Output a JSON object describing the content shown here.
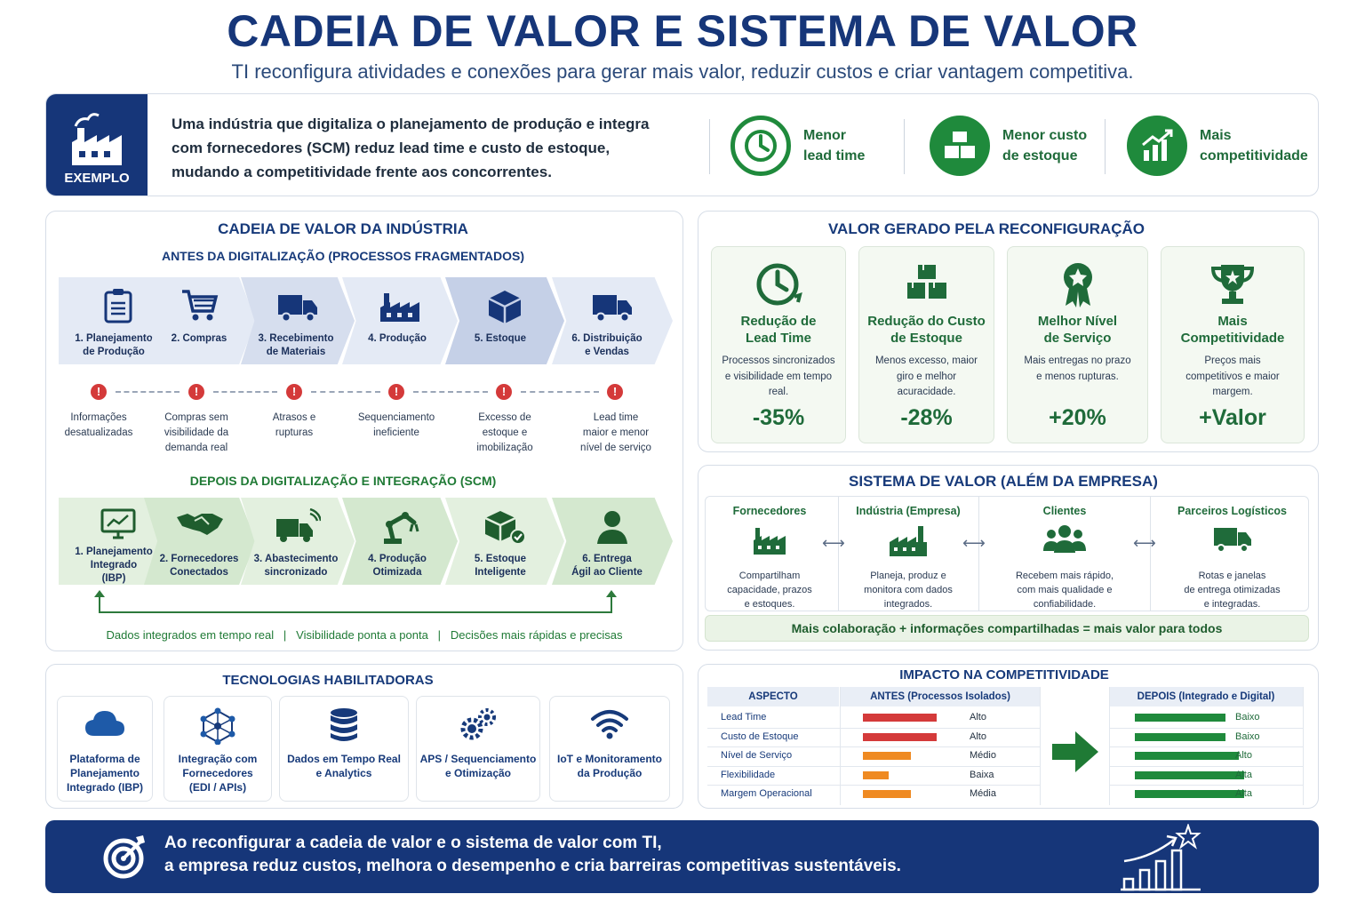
{
  "header": {
    "title": "CADEIA DE VALOR E SISTEMA DE VALOR",
    "subtitle": "TI reconfigura atividades e conexões para gerar mais valor, reduzir custos e criar vantagem competitiva."
  },
  "example": {
    "badge": "EXEMPLO",
    "text": "Uma indústria que digitaliza o planejamento de produção e integra com fornecedores (SCM) reduz lead time e custo de estoque, mudando a competitividade frente aos concorrentes.",
    "benefits": [
      {
        "label_1": "Menor",
        "label_2": "lead time",
        "icon": "clock-icon"
      },
      {
        "label_1": "Menor custo",
        "label_2": "de estoque",
        "icon": "boxes-icon"
      },
      {
        "label_1": "Mais",
        "label_2": "competitividade",
        "icon": "growth-chart-icon"
      }
    ]
  },
  "value_chain": {
    "title": "CADEIA DE VALOR DA INDÚSTRIA",
    "before_title": "ANTES DA DIGITALIZAÇÃO (PROCESSOS FRAGMENTADOS)",
    "before": [
      {
        "line1": "1. Planejamento",
        "line2": "de Produção",
        "icon": "clipboard-icon"
      },
      {
        "line1": "2. Compras",
        "line2": "",
        "icon": "cart-icon"
      },
      {
        "line1": "3. Recebimento",
        "line2": "de Materiais",
        "icon": "truck-icon"
      },
      {
        "line1": "4. Produção",
        "line2": "",
        "icon": "factory-icon"
      },
      {
        "line1": "5. Estoque",
        "line2": "",
        "icon": "box-icon"
      },
      {
        "line1": "6. Distribuição",
        "line2": "e Vendas",
        "icon": "truck-icon"
      }
    ],
    "issues": [
      [
        "Informações",
        "desatualizadas",
        ""
      ],
      [
        "Compras sem",
        "visibilidade da",
        "demanda real"
      ],
      [
        "Atrasos e",
        "rupturas",
        ""
      ],
      [
        "Sequenciamento",
        "ineficiente",
        ""
      ],
      [
        "Excesso de",
        "estoque e",
        "imobilização"
      ],
      [
        "Lead time",
        "maior e menor",
        "nível de serviço"
      ]
    ],
    "warn_symbol": "!",
    "after_title": "DEPOIS DA DIGITALIZAÇÃO E INTEGRAÇÃO (SCM)",
    "after": [
      {
        "line1": "1. Planejamento",
        "line2": "Integrado",
        "line3": "(IBP)",
        "icon": "monitor-chart-icon"
      },
      {
        "line1": "2. Fornecedores",
        "line2": "Conectados",
        "line3": "",
        "icon": "handshake-icon"
      },
      {
        "line1": "3. Abastecimento",
        "line2": "sincronizado",
        "line3": "",
        "icon": "connected-truck-icon"
      },
      {
        "line1": "4. Produção",
        "line2": "Otimizada",
        "line3": "",
        "icon": "robot-arm-icon"
      },
      {
        "line1": "5. Estoque",
        "line2": "Inteligente",
        "line3": "",
        "icon": "box-check-icon"
      },
      {
        "line1": "6. Entrega",
        "line2": "Ágil ao Cliente",
        "line3": "",
        "icon": "person-icon"
      }
    ],
    "footer": "Dados integrados em tempo real   |   Visibilidade ponta a ponta   |   Decisões mais rápidas e precisas"
  },
  "value_generated": {
    "title": "VALOR GERADO PELA RECONFIGURAÇÃO",
    "cards": [
      {
        "t1": "Redução de",
        "t2": "Lead Time",
        "d1": "Processos sincronizados",
        "d2": "e visibilidade em tempo",
        "d3": "real.",
        "value": "-35%",
        "icon": "clock-icon"
      },
      {
        "t1": "Redução do Custo",
        "t2": "de Estoque",
        "d1": "Menos excesso, maior",
        "d2": "giro e melhor",
        "d3": "acuracidade.",
        "value": "-28%",
        "icon": "boxes-icon"
      },
      {
        "t1": "Melhor Nível",
        "t2": "de Serviço",
        "d1": "Mais entregas no prazo",
        "d2": "e menos rupturas.",
        "d3": "",
        "value": "+20%",
        "icon": "award-icon"
      },
      {
        "t1": "Mais",
        "t2": "Competitividade",
        "d1": "Preços mais",
        "d2": "competitivos e maior",
        "d3": "margem.",
        "value": "+Valor",
        "icon": "trophy-icon"
      }
    ]
  },
  "value_system": {
    "title": "SISTEMA DE VALOR (ALÉM DA EMPRESA)",
    "nodes": [
      {
        "name": "Fornecedores",
        "d1": "Compartilham",
        "d2": "capacidade, prazos",
        "d3": "e estoques.",
        "icon": "factory-icon"
      },
      {
        "name": "Indústria (Empresa)",
        "d1": "Planeja, produz e",
        "d2": "monitora com dados",
        "d3": "integrados.",
        "icon": "factory-icon"
      },
      {
        "name": "Clientes",
        "d1": "Recebem mais rápido,",
        "d2": "com mais qualidade e",
        "d3": "confiabilidade.",
        "icon": "people-icon"
      },
      {
        "name": "Parceiros Logísticos",
        "d1": "Rotas e janelas",
        "d2": "de entrega otimizadas",
        "d3": "e integradas.",
        "icon": "truck-icon"
      }
    ],
    "arrow": "⟷",
    "footer": "Mais colaboração + informações compartilhadas = mais valor para todos"
  },
  "technologies": {
    "title": "TECNOLOGIAS HABILITADORAS",
    "items": [
      {
        "l1": "Plataforma de",
        "l2": "Planejamento",
        "l3": "Integrado (IBP)",
        "icon": "cloud-icon"
      },
      {
        "l1": "Integração com",
        "l2": "Fornecedores",
        "l3": "(EDI / APIs)",
        "icon": "network-icon"
      },
      {
        "l1": "Dados em Tempo Real",
        "l2": "e Analytics",
        "l3": "",
        "icon": "database-icon"
      },
      {
        "l1": "APS / Sequenciamento",
        "l2": "e Otimização",
        "l3": "",
        "icon": "gears-icon"
      },
      {
        "l1": "IoT e Monitoramento",
        "l2": "da Produção",
        "l3": "",
        "icon": "wifi-icon"
      }
    ]
  },
  "impact": {
    "title": "IMPACTO NA COMPETITIVIDADE",
    "col_aspect": "ASPECTO",
    "col_before": "ANTES (Processos Isolados)",
    "col_after": "DEPOIS (Integrado e Digital)",
    "rows": [
      {
        "aspect": "Lead Time",
        "before": "Alto",
        "before_level": 0.85,
        "before_color": "#d43a3a",
        "after": "Baixo",
        "after_level": 0.68
      },
      {
        "aspect": "Custo de Estoque",
        "before": "Alto",
        "before_level": 0.85,
        "before_color": "#d43a3a",
        "after": "Baixo",
        "after_level": 0.68
      },
      {
        "aspect": "Nível de Serviço",
        "before": "Médio",
        "before_level": 0.55,
        "before_color": "#ef8a22",
        "after": "Alto",
        "after_level": 0.78
      },
      {
        "aspect": "Flexibilidade",
        "before": "Baixa",
        "before_level": 0.3,
        "before_color": "#ef8a22",
        "after": "Alta",
        "after_level": 0.82
      },
      {
        "aspect": "Margem Operacional",
        "before": "Média",
        "before_level": 0.55,
        "before_color": "#ef8a22",
        "after": "Alta",
        "after_level": 0.82
      }
    ],
    "after_color": "#1f8a3c"
  },
  "bottom": {
    "line1": "Ao reconfigurar a cadeia de valor e o sistema de valor com TI,",
    "line2": "a empresa reduz custos, melhora o desempenho e cria barreiras competitivas sustentáveis."
  }
}
